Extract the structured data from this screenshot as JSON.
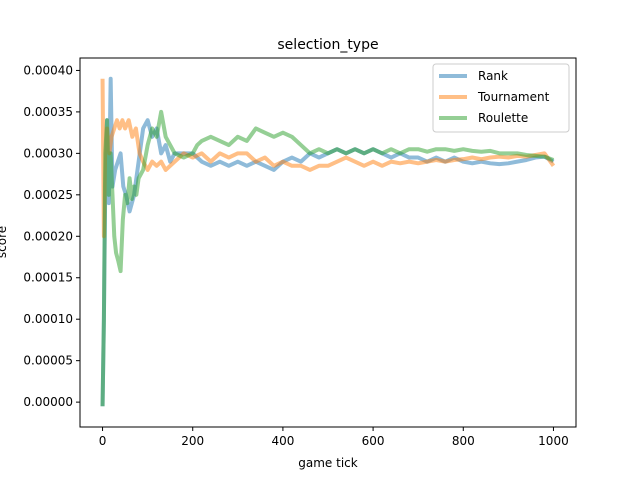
{
  "chart_data": {
    "type": "line",
    "title": "selection_type",
    "xlabel": "game tick",
    "ylabel": "score",
    "xlim": [
      -50,
      1050
    ],
    "ylim": [
      -3e-05,
      0.000415
    ],
    "xticks": [
      0,
      200,
      400,
      600,
      800,
      1000
    ],
    "yticks": [
      0.0,
      5e-05,
      0.0001,
      0.00015,
      0.0002,
      0.00025,
      0.0003,
      0.00035,
      0.0004
    ],
    "ytick_labels": [
      "0.00000",
      "0.00005",
      "0.00010",
      "0.00015",
      "0.00020",
      "0.00025",
      "0.00030",
      "0.00035",
      "0.00040"
    ],
    "xtick_labels": [
      "0",
      "200",
      "400",
      "600",
      "800",
      "1000"
    ],
    "legend_position": "top-right",
    "grid": false,
    "series": [
      {
        "name": "Rank",
        "color": "#1f77b4",
        "points": [
          [
            0,
            -5e-06
          ],
          [
            3,
            0.0001
          ],
          [
            6,
            0.00026
          ],
          [
            10,
            0.00034
          ],
          [
            14,
            0.00024
          ],
          [
            18,
            0.00039
          ],
          [
            22,
            0.00026
          ],
          [
            28,
            0.00028
          ],
          [
            34,
            0.00029
          ],
          [
            40,
            0.0003
          ],
          [
            46,
            0.00026
          ],
          [
            52,
            0.00025
          ],
          [
            60,
            0.00023
          ],
          [
            70,
            0.00025
          ],
          [
            80,
            0.00029
          ],
          [
            90,
            0.00033
          ],
          [
            100,
            0.00034
          ],
          [
            110,
            0.00032
          ],
          [
            120,
            0.00033
          ],
          [
            130,
            0.0003
          ],
          [
            140,
            0.00031
          ],
          [
            150,
            0.00029
          ],
          [
            160,
            0.0003
          ],
          [
            180,
            0.0003
          ],
          [
            200,
            0.0003
          ],
          [
            220,
            0.00029
          ],
          [
            240,
            0.000285
          ],
          [
            260,
            0.00029
          ],
          [
            280,
            0.000285
          ],
          [
            300,
            0.00029
          ],
          [
            320,
            0.000285
          ],
          [
            340,
            0.00029
          ],
          [
            360,
            0.000285
          ],
          [
            380,
            0.00028
          ],
          [
            400,
            0.00029
          ],
          [
            420,
            0.000295
          ],
          [
            440,
            0.00029
          ],
          [
            460,
            0.0003
          ],
          [
            480,
            0.000295
          ],
          [
            500,
            0.0003
          ],
          [
            520,
            0.000305
          ],
          [
            540,
            0.0003
          ],
          [
            560,
            0.000305
          ],
          [
            580,
            0.0003
          ],
          [
            600,
            0.000305
          ],
          [
            620,
            0.0003
          ],
          [
            640,
            0.000295
          ],
          [
            660,
            0.0003
          ],
          [
            680,
            0.000295
          ],
          [
            700,
            0.000295
          ],
          [
            720,
            0.00029
          ],
          [
            740,
            0.000295
          ],
          [
            760,
            0.00029
          ],
          [
            780,
            0.000295
          ],
          [
            800,
            0.00029
          ],
          [
            820,
            0.000288
          ],
          [
            840,
            0.00029
          ],
          [
            860,
            0.000288
          ],
          [
            880,
            0.000287
          ],
          [
            900,
            0.000288
          ],
          [
            920,
            0.00029
          ],
          [
            940,
            0.000292
          ],
          [
            960,
            0.000295
          ],
          [
            980,
            0.000296
          ],
          [
            1000,
            0.00029
          ]
        ]
      },
      {
        "name": "Tournament",
        "color": "#ff7f0e",
        "points": [
          [
            0,
            0.00039
          ],
          [
            3,
            0.0002
          ],
          [
            6,
            0.00031
          ],
          [
            10,
            0.00033
          ],
          [
            15,
            0.0003
          ],
          [
            20,
            0.00032
          ],
          [
            26,
            0.00033
          ],
          [
            32,
            0.00034
          ],
          [
            38,
            0.00033
          ],
          [
            44,
            0.00034
          ],
          [
            50,
            0.00033
          ],
          [
            58,
            0.00034
          ],
          [
            66,
            0.00032
          ],
          [
            74,
            0.00033
          ],
          [
            82,
            0.0003
          ],
          [
            90,
            0.00029
          ],
          [
            100,
            0.00028
          ],
          [
            110,
            0.00029
          ],
          [
            120,
            0.000285
          ],
          [
            130,
            0.00029
          ],
          [
            140,
            0.00028
          ],
          [
            160,
            0.00029
          ],
          [
            180,
            0.0003
          ],
          [
            200,
            0.000295
          ],
          [
            220,
            0.0003
          ],
          [
            240,
            0.00029
          ],
          [
            260,
            0.0003
          ],
          [
            280,
            0.000295
          ],
          [
            300,
            0.0003
          ],
          [
            320,
            0.0003
          ],
          [
            340,
            0.00029
          ],
          [
            360,
            0.000295
          ],
          [
            380,
            0.000285
          ],
          [
            400,
            0.00029
          ],
          [
            420,
            0.000285
          ],
          [
            440,
            0.000285
          ],
          [
            460,
            0.00028
          ],
          [
            480,
            0.000285
          ],
          [
            500,
            0.000285
          ],
          [
            520,
            0.00029
          ],
          [
            540,
            0.000295
          ],
          [
            560,
            0.00029
          ],
          [
            580,
            0.000285
          ],
          [
            600,
            0.00029
          ],
          [
            620,
            0.000285
          ],
          [
            640,
            0.00029
          ],
          [
            660,
            0.000288
          ],
          [
            680,
            0.00029
          ],
          [
            700,
            0.000288
          ],
          [
            720,
            0.00029
          ],
          [
            740,
            0.000292
          ],
          [
            760,
            0.00029
          ],
          [
            780,
            0.000292
          ],
          [
            800,
            0.000293
          ],
          [
            820,
            0.000295
          ],
          [
            840,
            0.000293
          ],
          [
            860,
            0.000295
          ],
          [
            880,
            0.000296
          ],
          [
            900,
            0.000295
          ],
          [
            920,
            0.000297
          ],
          [
            940,
            0.000296
          ],
          [
            960,
            0.000298
          ],
          [
            980,
            0.0003
          ],
          [
            1000,
            0.000285
          ]
        ]
      },
      {
        "name": "Roulette",
        "color": "#2ca02c",
        "points": [
          [
            0,
            -5e-06
          ],
          [
            3,
            0.0001
          ],
          [
            6,
            0.0003
          ],
          [
            10,
            0.00034
          ],
          [
            14,
            0.00025
          ],
          [
            18,
            0.0003
          ],
          [
            22,
            0.00025
          ],
          [
            26,
            0.0002
          ],
          [
            30,
            0.00018
          ],
          [
            35,
            0.00017
          ],
          [
            40,
            0.000158
          ],
          [
            45,
            0.00022
          ],
          [
            50,
            0.00025
          ],
          [
            55,
            0.00024
          ],
          [
            60,
            0.00027
          ],
          [
            65,
            0.000245
          ],
          [
            70,
            0.00026
          ],
          [
            75,
            0.00025
          ],
          [
            80,
            0.00027
          ],
          [
            90,
            0.00028
          ],
          [
            100,
            0.00031
          ],
          [
            110,
            0.00033
          ],
          [
            120,
            0.00032
          ],
          [
            130,
            0.00035
          ],
          [
            140,
            0.00032
          ],
          [
            150,
            0.00031
          ],
          [
            160,
            0.0003
          ],
          [
            180,
            0.000295
          ],
          [
            200,
            0.0003
          ],
          [
            210,
            0.00031
          ],
          [
            220,
            0.000315
          ],
          [
            240,
            0.00032
          ],
          [
            260,
            0.000315
          ],
          [
            280,
            0.00031
          ],
          [
            300,
            0.00032
          ],
          [
            320,
            0.000315
          ],
          [
            340,
            0.00033
          ],
          [
            360,
            0.000325
          ],
          [
            380,
            0.00032
          ],
          [
            400,
            0.000325
          ],
          [
            420,
            0.00032
          ],
          [
            440,
            0.00031
          ],
          [
            460,
            0.0003
          ],
          [
            480,
            0.000305
          ],
          [
            500,
            0.0003
          ],
          [
            520,
            0.000305
          ],
          [
            540,
            0.0003
          ],
          [
            560,
            0.000305
          ],
          [
            580,
            0.0003
          ],
          [
            600,
            0.000305
          ],
          [
            620,
            0.0003
          ],
          [
            640,
            0.000305
          ],
          [
            660,
            0.0003
          ],
          [
            680,
            0.000305
          ],
          [
            700,
            0.000305
          ],
          [
            720,
            0.000302
          ],
          [
            740,
            0.000305
          ],
          [
            760,
            0.000305
          ],
          [
            780,
            0.000303
          ],
          [
            800,
            0.000305
          ],
          [
            820,
            0.000303
          ],
          [
            840,
            0.000302
          ],
          [
            860,
            0.000303
          ],
          [
            880,
            0.0003
          ],
          [
            900,
            0.0003
          ],
          [
            920,
            0.0003
          ],
          [
            940,
            0.000298
          ],
          [
            960,
            0.000297
          ],
          [
            980,
            0.000296
          ],
          [
            1000,
            0.000292
          ]
        ]
      }
    ]
  }
}
